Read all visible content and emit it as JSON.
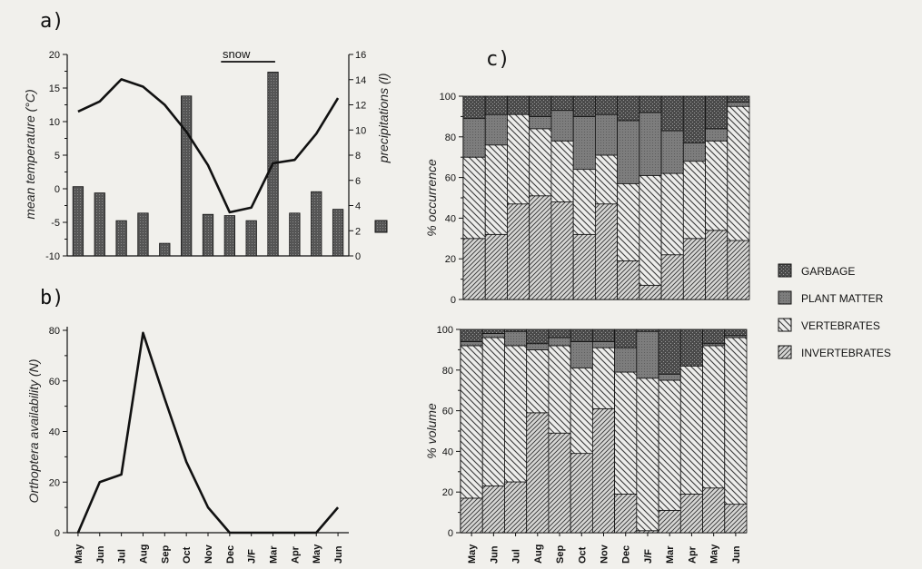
{
  "chart_data": [
    {
      "panel_label": "a)",
      "type": "bar",
      "categories": [
        "May",
        "Jun",
        "Jul",
        "Aug",
        "Sep",
        "Oct",
        "Nov",
        "Dec",
        "J/F",
        "Mar",
        "Apr",
        "May",
        "Jun"
      ],
      "ylabel": "mean temperature (°C)",
      "ylim": [
        -10,
        20
      ],
      "yticks": [
        "20",
        "15",
        "10",
        "5",
        "0",
        "-5",
        "-10"
      ],
      "y2label": "precipitations (l)",
      "y2lim": [
        0,
        16
      ],
      "y2ticks": [
        "16",
        "14",
        "12",
        "10",
        "8",
        "6",
        "4",
        "2",
        "0"
      ],
      "annotation": "snow",
      "annotation_span": [
        "Dec",
        "Mar"
      ],
      "series": [
        {
          "kind": "line",
          "axis": "left",
          "values": [
            11.5,
            13,
            16.3,
            15.2,
            12.5,
            8.5,
            3.5,
            -3.5,
            -2.8,
            3.8,
            4.3,
            8.2,
            13.5
          ]
        },
        {
          "kind": "bar",
          "axis": "right",
          "values": [
            5.5,
            5.0,
            2.8,
            3.4,
            1.0,
            12.7,
            3.3,
            3.2,
            2.8,
            14.6,
            3.4,
            5.1,
            3.7
          ]
        }
      ]
    },
    {
      "panel_label": "b)",
      "type": "line",
      "categories": [
        "May",
        "Jun",
        "Jul",
        "Aug",
        "Sep",
        "Oct",
        "Nov",
        "Dec",
        "J/F",
        "Mar",
        "Apr",
        "May",
        "Jun"
      ],
      "ylabel": "Orthoptera availability (N)",
      "ylim": [
        0,
        80
      ],
      "yticks": [
        "80",
        "60",
        "40",
        "20",
        "0"
      ],
      "values": [
        0,
        20,
        23,
        79,
        53,
        28,
        10,
        0,
        0,
        0,
        0,
        0,
        10
      ]
    },
    {
      "panel_label": "c)",
      "type": "bar",
      "stacked": true,
      "categories": [
        "May",
        "Jun",
        "Jul",
        "Aug",
        "Sep",
        "Oct",
        "Nov",
        "Dec",
        "J/F",
        "Mar",
        "Apr",
        "May",
        "Jun"
      ],
      "ylabel": "% occurrence",
      "ylim": [
        0,
        100
      ],
      "yticks": [
        "100",
        "80",
        "60",
        "40",
        "20",
        "0"
      ],
      "series": [
        {
          "name": "INVERTEBRATES",
          "values": [
            30,
            32,
            47,
            51,
            48,
            32,
            47,
            19,
            7,
            22,
            30,
            34,
            29
          ]
        },
        {
          "name": "VERTEBRATES",
          "values": [
            40,
            44,
            44,
            33,
            30,
            32,
            24,
            38,
            54,
            40,
            38,
            44,
            66
          ]
        },
        {
          "name": "PLANT MATTER",
          "values": [
            19,
            15,
            0,
            6,
            15,
            26,
            20,
            31,
            31,
            21,
            9,
            6,
            2
          ]
        },
        {
          "name": "GARBAGE",
          "values": [
            11,
            9,
            9,
            10,
            7,
            10,
            9,
            12,
            8,
            17,
            23,
            16,
            3
          ]
        }
      ]
    },
    {
      "type": "bar",
      "stacked": true,
      "categories": [
        "May",
        "Jun",
        "Jul",
        "Aug",
        "Sep",
        "Oct",
        "Nov",
        "Dec",
        "J/F",
        "Mar",
        "Apr",
        "May",
        "Jun"
      ],
      "ylabel": "% volume",
      "ylim": [
        0,
        100
      ],
      "yticks": [
        "100",
        "80",
        "60",
        "40",
        "20",
        "0"
      ],
      "series": [
        {
          "name": "INVERTEBRATES",
          "values": [
            17,
            23,
            25,
            59,
            49,
            39,
            61,
            19,
            1,
            11,
            19,
            22,
            14
          ]
        },
        {
          "name": "VERTEBRATES",
          "values": [
            75,
            73,
            67,
            31,
            43,
            42,
            30,
            60,
            75,
            64,
            63,
            70,
            82
          ]
        },
        {
          "name": "PLANT MATTER",
          "values": [
            2,
            2,
            7,
            3,
            4,
            13,
            3,
            12,
            23,
            3,
            0,
            1,
            1
          ]
        },
        {
          "name": "GARBAGE",
          "values": [
            6,
            2,
            1,
            7,
            4,
            6,
            6,
            9,
            1,
            22,
            18,
            7,
            3
          ]
        }
      ]
    }
  ],
  "legend": {
    "items": [
      "GARBAGE",
      "PLANT MATTER",
      "VERTEBRATES",
      "INVERTEBRATES"
    ]
  },
  "colors": {
    "background": "#f1f0ec",
    "garbage": "#3f3f3f",
    "plant_matter": "#7a7a7a",
    "vertebrates": "#c9c9c9",
    "invertebrates": "#b8b8b8",
    "ink": "#111111"
  }
}
